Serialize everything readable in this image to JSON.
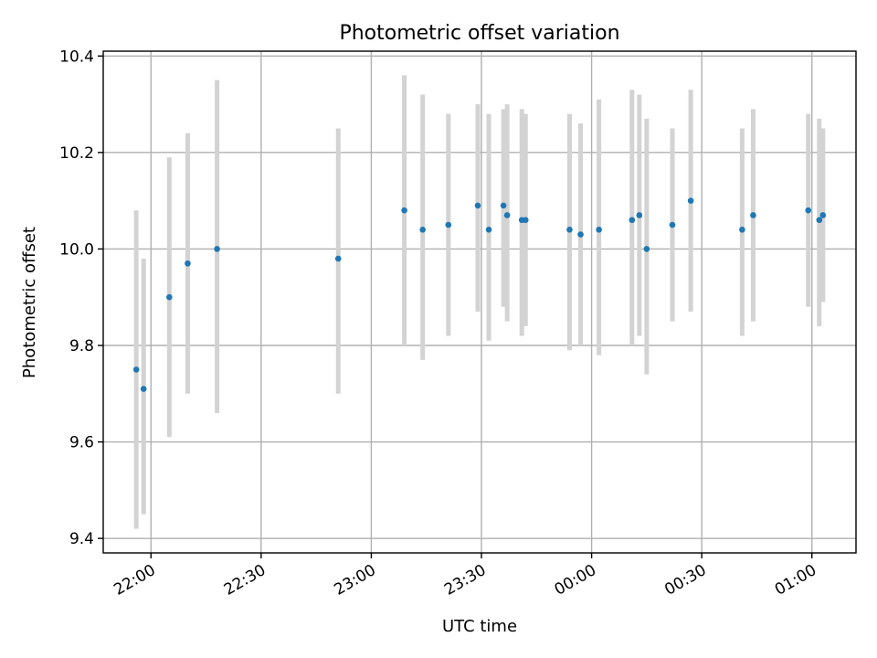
{
  "chart_data": {
    "type": "scatter",
    "title": "Photometric offset variation",
    "xlabel": "UTC time",
    "ylabel": "Photometric offset",
    "ylim": [
      9.37,
      10.41
    ],
    "xlim": [
      "21:47",
      "01:12"
    ],
    "grid": true,
    "yticks": [
      9.4,
      9.6,
      9.8,
      10.0,
      10.2,
      10.4
    ],
    "ytick_labels": [
      "9.4",
      "9.6",
      "9.8",
      "10.0",
      "10.2",
      "10.4"
    ],
    "xticks": [
      "22:00",
      "22:30",
      "23:00",
      "23:30",
      "00:00",
      "00:30",
      "01:00"
    ],
    "series": [
      {
        "marker_color": "#1f77b4",
        "errorbar_color": "#d3d3d3",
        "points": [
          {
            "x": "21:56",
            "y": 9.75,
            "ylow": 9.42,
            "yhigh": 10.08
          },
          {
            "x": "21:58",
            "y": 9.71,
            "ylow": 9.45,
            "yhigh": 9.98
          },
          {
            "x": "22:05",
            "y": 9.9,
            "ylow": 9.61,
            "yhigh": 10.19
          },
          {
            "x": "22:10",
            "y": 9.97,
            "ylow": 9.7,
            "yhigh": 10.24
          },
          {
            "x": "22:18",
            "y": 10.0,
            "ylow": 9.66,
            "yhigh": 10.35
          },
          {
            "x": "22:51",
            "y": 9.98,
            "ylow": 9.7,
            "yhigh": 10.25
          },
          {
            "x": "23:09",
            "y": 10.08,
            "ylow": 9.8,
            "yhigh": 10.36
          },
          {
            "x": "23:14",
            "y": 10.04,
            "ylow": 9.77,
            "yhigh": 10.32
          },
          {
            "x": "23:21",
            "y": 10.05,
            "ylow": 9.82,
            "yhigh": 10.28
          },
          {
            "x": "23:29",
            "y": 10.09,
            "ylow": 9.87,
            "yhigh": 10.3
          },
          {
            "x": "23:32",
            "y": 10.04,
            "ylow": 9.81,
            "yhigh": 10.28
          },
          {
            "x": "23:36",
            "y": 10.09,
            "ylow": 9.88,
            "yhigh": 10.29
          },
          {
            "x": "23:37",
            "y": 10.07,
            "ylow": 9.85,
            "yhigh": 10.3
          },
          {
            "x": "23:41",
            "y": 10.06,
            "ylow": 9.82,
            "yhigh": 10.29
          },
          {
            "x": "23:42",
            "y": 10.06,
            "ylow": 9.84,
            "yhigh": 10.28
          },
          {
            "x": "23:54",
            "y": 10.04,
            "ylow": 9.79,
            "yhigh": 10.28
          },
          {
            "x": "23:57",
            "y": 10.03,
            "ylow": 9.8,
            "yhigh": 10.26
          },
          {
            "x": "00:02",
            "y": 10.04,
            "ylow": 9.78,
            "yhigh": 10.31
          },
          {
            "x": "00:11",
            "y": 10.06,
            "ylow": 9.8,
            "yhigh": 10.33
          },
          {
            "x": "00:13",
            "y": 10.07,
            "ylow": 9.82,
            "yhigh": 10.32
          },
          {
            "x": "00:15",
            "y": 10.0,
            "ylow": 9.74,
            "yhigh": 10.27
          },
          {
            "x": "00:22",
            "y": 10.05,
            "ylow": 9.85,
            "yhigh": 10.25
          },
          {
            "x": "00:27",
            "y": 10.1,
            "ylow": 9.87,
            "yhigh": 10.33
          },
          {
            "x": "00:41",
            "y": 10.04,
            "ylow": 9.82,
            "yhigh": 10.25
          },
          {
            "x": "00:44",
            "y": 10.07,
            "ylow": 9.85,
            "yhigh": 10.29
          },
          {
            "x": "00:59",
            "y": 10.08,
            "ylow": 9.88,
            "yhigh": 10.28
          },
          {
            "x": "01:02",
            "y": 10.06,
            "ylow": 9.84,
            "yhigh": 10.27
          },
          {
            "x": "01:03",
            "y": 10.07,
            "ylow": 9.89,
            "yhigh": 10.25
          }
        ]
      }
    ]
  }
}
